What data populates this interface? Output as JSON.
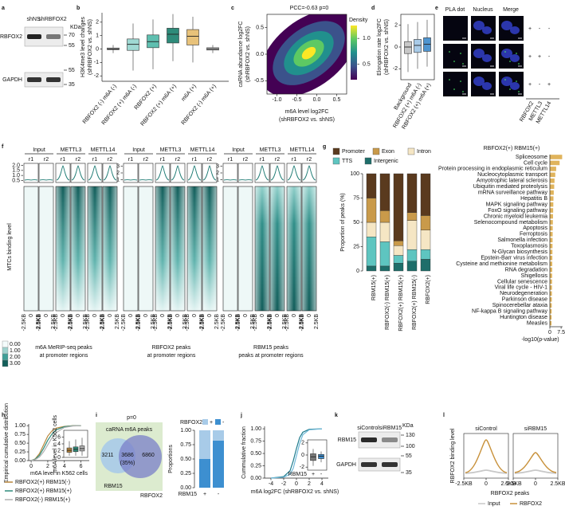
{
  "a": {
    "label": "a",
    "lanes": [
      "shNS",
      "shRBFOX2"
    ],
    "unit": "KDa",
    "proteins": [
      "RBFOX2",
      "GAPDH"
    ],
    "markers": [
      70,
      55,
      55,
      35
    ]
  },
  "b": {
    "label": "b",
    "ylabel": "H3K4me3 level changes",
    "ylabel2": "(shRBFOX2 vs. shNS)",
    "ylim": [
      -2.4,
      2.7
    ],
    "yticks": [
      -2,
      -1,
      0,
      1,
      2
    ],
    "categories": [
      "RBFOX2 (-) m6A (-)",
      "RBFOX2 (+) m6A (-)",
      "RBFOX2 (+)",
      "RBFOX2 (+) m6A (+)",
      "m6A (+)",
      "RBFOX2 (-) m6A (+)"
    ],
    "colors": [
      "#bfbfbf",
      "#9fd9d3",
      "#5fbfb0",
      "#2e8b7a",
      "#e8c27a",
      "#bfbfbf"
    ],
    "boxes": [
      {
        "low": -0.3,
        "q1": -0.05,
        "median": 0,
        "q3": 0.08,
        "high": 0.3
      },
      {
        "low": -1.6,
        "q1": -0.1,
        "median": 0.35,
        "q3": 0.75,
        "high": 1.9
      },
      {
        "low": -1.5,
        "q1": 0.1,
        "median": 0.55,
        "q3": 1.05,
        "high": 2.2
      },
      {
        "low": -0.9,
        "q1": 0.45,
        "median": 1.1,
        "q3": 1.55,
        "high": 2.6
      },
      {
        "low": -1.0,
        "q1": 0.3,
        "median": 0.95,
        "q3": 1.45,
        "high": 2.4
      },
      {
        "low": -0.3,
        "q1": -0.08,
        "median": 0,
        "q3": 0.1,
        "high": 0.3
      }
    ]
  },
  "c": {
    "label": "c",
    "title": "PCC=-0.63 p=0",
    "xlabel": "m6A level log2FC",
    "xlabel2": "(shRBFOX2 vs. shNS)",
    "ylabel": "caRNA abundance log2FC",
    "ylabel2": "(shRBFOX2 vs. shNS)",
    "xlim": [
      -1.25,
      0.75
    ],
    "xticks": [
      {
        "value": -1,
        "label": "-1.0"
      },
      -0.5,
      {
        "value": 0,
        "label": "0.0"
      },
      0.5
    ],
    "ylim": [
      -0.75,
      0.75
    ],
    "yticks": [
      -0.5,
      {
        "value": 0,
        "label": "0.0"
      },
      0.5
    ],
    "legend_title": "Density",
    "cbar_lim": [
      0.2,
      1.25
    ],
    "cbar_ticks": [
      0.5,
      {
        "value": 1,
        "label": "1.0"
      }
    ]
  },
  "d": {
    "label": "d",
    "ylabel": "Elongation rate log2FC",
    "ylabel2": "(shRBFOX2 vs. shNS)",
    "ylim": [
      -3,
      3
    ],
    "yticks": [
      -2,
      0,
      2
    ],
    "categories": [
      "Background",
      "RBFOX2 (+) m6A (-)",
      "RBFOX2 (+) m6A (+)"
    ],
    "colors": [
      "#c8c8c8",
      "#a9cbe8",
      "#4f95d0"
    ],
    "boxes": [
      {
        "low": -2.3,
        "q1": -0.6,
        "median": 0,
        "q3": 0.5,
        "high": 2.1
      },
      {
        "low": -2.0,
        "q1": -0.5,
        "median": 0.15,
        "q3": 0.7,
        "high": 2.3
      },
      {
        "low": -1.8,
        "q1": -0.4,
        "median": 0.25,
        "q3": 0.85,
        "high": 2.5
      }
    ]
  },
  "e": {
    "label": "e",
    "columns": [
      "PLA dot",
      "Nucleus",
      "Merge"
    ],
    "rows": [
      [
        "+",
        "-",
        "-"
      ],
      [
        "+",
        "+",
        "-"
      ],
      [
        "+",
        "-",
        "+"
      ]
    ],
    "row_names": [
      "RBFOX2",
      "METTL3",
      "METTL14"
    ]
  },
  "f": {
    "label": "f",
    "ylabel": "MTCs binding level",
    "tracks": [
      "Input",
      "METTL3",
      "METTL14"
    ],
    "reps": [
      "r1",
      "r2"
    ],
    "xticks": [
      "-2.5KB",
      "0",
      "2.5KB"
    ],
    "groups": [
      {
        "ylim": [
          0.3,
          2.2
        ],
        "yticks": [
          0.5,
          {
            "value": 1,
            "label": "1.0"
          },
          1.5,
          {
            "value": 2,
            "label": "2.0"
          }
        ],
        "caption": [
          "m6A MeRIP-seq peaks",
          "at promoter regions"
        ]
      },
      {
        "ylim": [
          0.6,
          3.4
        ],
        "yticks": [
          1,
          2,
          3
        ],
        "caption": [
          "RBFOX2 peaks",
          "at promoter regions"
        ]
      },
      {
        "ylim": [
          0.6,
          3.4
        ],
        "yticks": [
          1,
          2,
          3
        ],
        "caption": [
          "RBM15 peaks",
          "peaks at promoter regions"
        ]
      }
    ],
    "cbar_ticks": [
      {
        "value": 0,
        "label": "0.00"
      },
      {
        "value": 1,
        "label": "1.00"
      },
      {
        "value": 2,
        "label": "2.00"
      },
      {
        "value": 3,
        "label": "3.00"
      }
    ],
    "cbar_colors": [
      "#f4fbfb",
      "#9fd3cf",
      "#3f9f98",
      "#135e5a"
    ]
  },
  "g": {
    "label": "g",
    "ylabel": "Proportion of peaks (%)",
    "ylim": [
      0,
      100
    ],
    "yticks": [
      0,
      25,
      50,
      75,
      100
    ],
    "categories": [
      "RBM15(+)",
      "RBFOX2(-) RBM15(+)",
      "RBFOX2(+) RBM15(+)",
      "RBFOX2(+) RBM15(-)",
      "RBFOX2(+)"
    ],
    "series": [
      {
        "name": "Promoter",
        "color": "#5a3a1e",
        "values": [
          25,
          38,
          69,
          40,
          43
        ]
      },
      {
        "name": "Exon",
        "color": "#c99a4a",
        "values": [
          25,
          12,
          5,
          8,
          15
        ]
      },
      {
        "name": "Intron",
        "color": "#f5e6c4",
        "values": [
          15,
          20,
          10,
          30,
          20
        ]
      },
      {
        "name": "TTS",
        "color": "#5ec5c0",
        "values": [
          30,
          25,
          8,
          12,
          10
        ]
      },
      {
        "name": "Intergenic",
        "color": "#1e6e6a",
        "values": [
          5,
          5,
          8,
          10,
          12
        ]
      }
    ],
    "enrich": {
      "title": "RBFOX2(+) RBM15(+)",
      "color": "#e0b45c",
      "xlabel": "-log10(p-value)",
      "xlim": [
        0,
        8.5
      ],
      "xticks": [
        0,
        7.5
      ],
      "terms": [
        "Spliceosome",
        "Cell cycle",
        "Protein processing in endoplasmic reticulum",
        "Nucleocytoplasmic transport",
        "Amyotrophic lateral sclerosis",
        "Ubiquitin mediated proteolysis",
        "mRNA surveillance pathway",
        "Hepatitis B",
        "MAPK signaling pathway",
        "FoxO signaling pathway",
        "Chronic myeloid leukemia",
        "Selenocompound metabolism",
        "Apoptosis",
        "Ferroptosis",
        "Salmonella infection",
        "Toxoplasmosis",
        "N-Glycan biosynthesis",
        "Epstein-Barr virus infection",
        "Cysteine and methionine metabolism",
        "RNA degradation",
        "Shigellosis",
        "Cellular senescence",
        "Viral life cycle - HIV-1",
        "Neurodegeneration",
        "Parkinson disease",
        "Spinocerebellar ataxia",
        "NF-kappa B signaling pathway",
        "Huntington disease",
        "Measles"
      ],
      "values": [
        8.2,
        6.5,
        4.2,
        3.6,
        3.1,
        2.9,
        2.6,
        2.4,
        2.3,
        2.2,
        2.1,
        2.0,
        1.9,
        1.85,
        1.8,
        1.75,
        1.7,
        1.65,
        1.6,
        1.55,
        1.5,
        1.45,
        1.4,
        1.35,
        1.3,
        1.25,
        1.2,
        1.15,
        1.1
      ]
    }
  },
  "h": {
    "label": "h",
    "ylabel": "Empirical cumulative distribution",
    "xlabel": "m6A level in K562 cells",
    "xlim": [
      -0.3,
      7
    ],
    "xticks": [
      0,
      2,
      4,
      6
    ],
    "ylim": [
      0,
      1.05
    ],
    "yticks": [
      {
        "value": 0,
        "label": "0.00"
      },
      0.25,
      {
        "value": 0.5,
        "label": "0.50"
      },
      0.75,
      {
        "value": 1,
        "label": "1.00"
      }
    ],
    "series": [
      {
        "name": "RBFOX2(+) RBM15(-)",
        "color": "#b8863a",
        "x": [
          0,
          0.5,
          1,
          1.5,
          2,
          2.5,
          3,
          4,
          5,
          6
        ],
        "y": [
          0,
          0.05,
          0.2,
          0.45,
          0.7,
          0.85,
          0.93,
          0.98,
          1,
          1
        ]
      },
      {
        "name": "RBFOX2(+) RBM15(+)",
        "color": "#2e8b7a",
        "x": [
          0,
          0.5,
          1,
          1.5,
          2,
          2.5,
          3,
          4,
          5,
          6
        ],
        "y": [
          0,
          0.04,
          0.15,
          0.35,
          0.58,
          0.76,
          0.88,
          0.97,
          0.995,
          1
        ]
      },
      {
        "name": "RBFOX2(-) RBM15(+)",
        "color": "#b0b0b0",
        "x": [
          0,
          0.5,
          1,
          1.5,
          2,
          2.5,
          3,
          4,
          5,
          6
        ],
        "y": [
          0,
          0.03,
          0.1,
          0.25,
          0.45,
          0.65,
          0.8,
          0.95,
          0.99,
          1
        ]
      }
    ],
    "inset": {
      "ylabel": "m6A level in K562 cells",
      "ylim": [
        0,
        8
      ],
      "yticks": [
        0,
        2,
        4,
        6
      ],
      "boxes": [
        {
          "low": 0.5,
          "q1": 1.5,
          "median": 2.1,
          "q3": 2.8,
          "high": 4.8
        },
        {
          "low": 0.5,
          "q1": 1.7,
          "median": 2.4,
          "q3": 3.1,
          "high": 5.3
        },
        {
          "low": 0.5,
          "q1": 1.9,
          "median": 2.6,
          "q3": 3.4,
          "high": 5.8
        }
      ]
    }
  },
  "i": {
    "label": "i",
    "title": "p=0",
    "box_title": "caRNA m6A peaks",
    "venn": {
      "left": 3211,
      "overlap": 3686,
      "overlap_pct": "(35%)",
      "right": 6860,
      "left_name": "RBM15",
      "right_name": "RBFOX2"
    },
    "bar": {
      "legend_title": "RBFOX2",
      "ylabel": "Proportions",
      "xlabel": "RBM15",
      "ylim": [
        0,
        1
      ],
      "yticks": [
        {
          "value": 0,
          "label": "0.00"
        },
        0.25,
        {
          "value": 0.5,
          "label": "0.50"
        },
        0.75,
        {
          "value": 1,
          "label": "1.00"
        }
      ],
      "categories": [
        "+",
        "-"
      ],
      "series": [
        {
          "name": "+",
          "color": "#a8cbe8",
          "values": [
            0.5,
            0.18
          ]
        },
        {
          "name": "-",
          "color": "#3d8fd0",
          "values": [
            0.5,
            0.82
          ]
        }
      ]
    }
  },
  "j": {
    "label": "j",
    "ylabel": "Cummulative fraction",
    "xlabel": "m6A log2FC (shRBFOX2 vs. shNS)",
    "xlim": [
      -5,
      5
    ],
    "xticks": [
      -4,
      -2,
      0,
      2,
      4
    ],
    "ylim": [
      0,
      1.05
    ],
    "yticks": [
      {
        "value": 0,
        "label": "0.00"
      },
      0.25,
      {
        "value": 0.5,
        "label": "0.50"
      },
      0.75,
      {
        "value": 1,
        "label": "1.00"
      }
    ],
    "series": [
      {
        "color": "#1e7b8c",
        "x": [
          -4,
          -2,
          -1,
          -0.5,
          0,
          0.5,
          1,
          2,
          4
        ],
        "y": [
          0,
          0.03,
          0.15,
          0.35,
          0.6,
          0.82,
          0.93,
          0.99,
          1
        ]
      },
      {
        "color": "#6fb8d8",
        "x": [
          -4,
          -2,
          -1,
          -0.5,
          0,
          0.5,
          1,
          2,
          4
        ],
        "y": [
          0,
          0.02,
          0.08,
          0.2,
          0.45,
          0.7,
          0.88,
          0.98,
          1
        ]
      }
    ],
    "inset": {
      "xlabel": "RBM15",
      "categories": [
        "+",
        "-"
      ],
      "ylim": [
        -2.5,
        2.5
      ],
      "yticks": [
        -2,
        0,
        2
      ],
      "colors": [
        "#7a7a7a",
        "#3d8fd0"
      ],
      "boxes": [
        {
          "low": -1.8,
          "q1": -0.9,
          "median": -0.3,
          "q3": 0.2,
          "high": 1.0
        },
        {
          "low": -1.2,
          "q1": -0.6,
          "median": -0.2,
          "q3": 0.1,
          "high": 0.6
        }
      ]
    }
  },
  "k": {
    "label": "k",
    "lanes": [
      "siControl",
      "siRBM15"
    ],
    "unit": "KDa",
    "proteins": [
      "RBM15",
      "GAPDH"
    ],
    "markers": [
      130,
      100,
      55,
      35
    ]
  },
  "l": {
    "label": "l",
    "panels": [
      "siControl",
      "siRBM15"
    ],
    "ylabel": "RBFOX2 binding level",
    "xticks": [
      "-2.5KB",
      "0",
      "2.5KB"
    ],
    "xlabel": "RBFOX2 peaks",
    "legend": [
      {
        "name": "Input",
        "color": "#c8c8c8"
      },
      {
        "name": "RBFOX2",
        "color": "#c8913a"
      }
    ]
  }
}
